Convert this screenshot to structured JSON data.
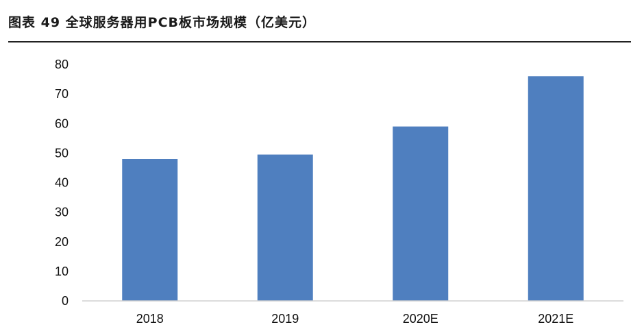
{
  "header": {
    "title": "图表 49 全球服务器用PCB板市场规模（亿美元）"
  },
  "chart_data": {
    "type": "bar",
    "title": "图表 49 全球服务器用PCB板市场规模（亿美元）",
    "categories": [
      "2018",
      "2019",
      "2020E",
      "2021E"
    ],
    "values": [
      48,
      49.5,
      59,
      76
    ],
    "ylim": [
      0,
      80
    ],
    "yticks": [
      0,
      10,
      20,
      30,
      40,
      50,
      60,
      70,
      80
    ],
    "grid": false,
    "legend": "none",
    "bar_color": "#4f7fbf"
  }
}
